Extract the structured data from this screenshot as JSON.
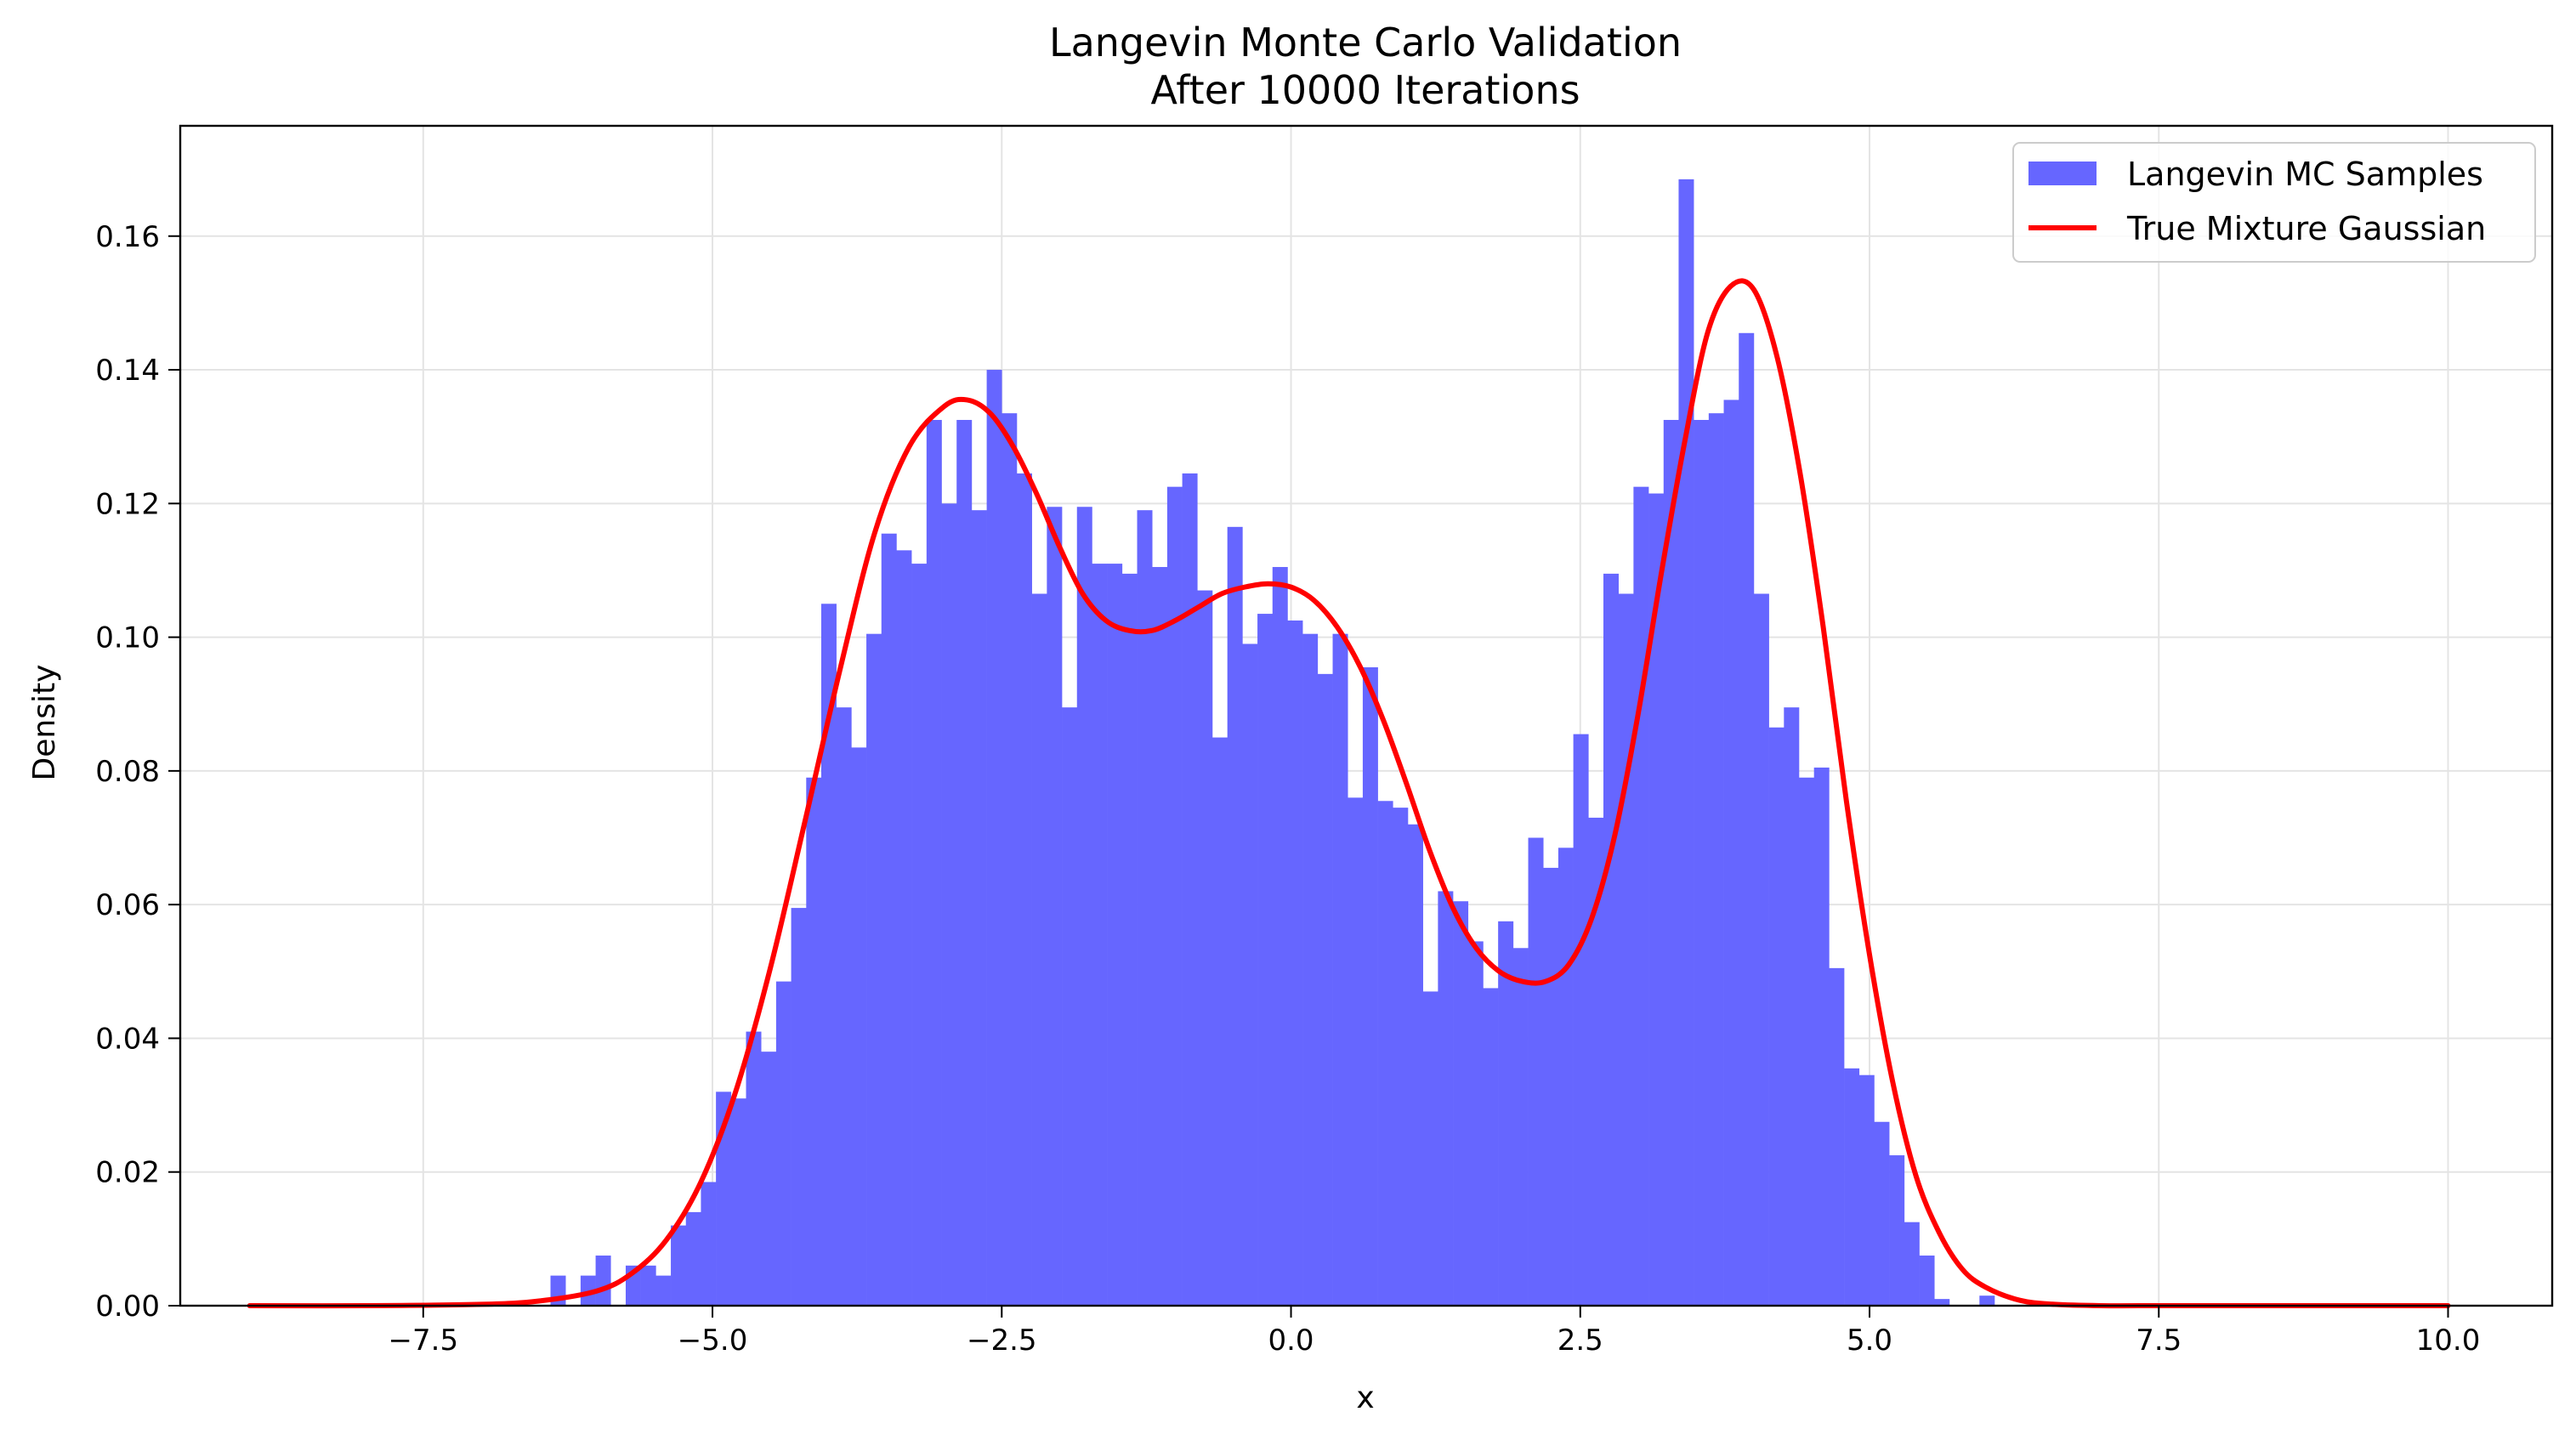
{
  "chart_data": {
    "type": "bar",
    "title": "Langevin Monte Carlo Validation",
    "subtitle": "After 10000 Iterations",
    "xlabel": "x",
    "ylabel": "Density",
    "xlim": [
      -9.6,
      10.9
    ],
    "ylim": [
      0,
      0.1765
    ],
    "x_ticks": [
      -7.5,
      -5.0,
      -2.5,
      0.0,
      2.5,
      5.0,
      7.5,
      10.0
    ],
    "x_tick_labels": [
      "−7.5",
      "−5.0",
      "−2.5",
      "0.0",
      "2.5",
      "5.0",
      "7.5",
      "10.0"
    ],
    "y_ticks": [
      0.0,
      0.02,
      0.04,
      0.06,
      0.08,
      0.1,
      0.12,
      0.14,
      0.16
    ],
    "y_tick_labels": [
      "0.00",
      "0.02",
      "0.04",
      "0.06",
      "0.08",
      "0.10",
      "0.12",
      "0.14",
      "0.16"
    ],
    "grid": true,
    "legend_position": "top-right",
    "colors": {
      "histogram": "#6666ff",
      "curve": "#ff0000",
      "grid": "#e4e4e4",
      "axes": "#000000"
    },
    "series": [
      {
        "name": "Langevin MC Samples",
        "kind": "histogram",
        "bin_start": -6.4,
        "bin_width": 0.13,
        "values": [
          0.0045,
          0,
          0.0045,
          0.0075,
          0,
          0.006,
          0.006,
          0.0045,
          0.012,
          0.014,
          0.0185,
          0.032,
          0.031,
          0.041,
          0.038,
          0.0485,
          0.0595,
          0.079,
          0.105,
          0.0895,
          0.0835,
          0.1005,
          0.1155,
          0.113,
          0.111,
          0.1325,
          0.12,
          0.1325,
          0.119,
          0.14,
          0.1335,
          0.1245,
          0.1065,
          0.1195,
          0.0895,
          0.1195,
          0.111,
          0.111,
          0.1095,
          0.119,
          0.1105,
          0.1225,
          0.1245,
          0.107,
          0.085,
          0.1165,
          0.099,
          0.1035,
          0.1105,
          0.1025,
          0.1005,
          0.0945,
          0.1005,
          0.076,
          0.0955,
          0.0755,
          0.0745,
          0.072,
          0.047,
          0.062,
          0.0605,
          0.0545,
          0.0475,
          0.0575,
          0.0535,
          0.07,
          0.0655,
          0.0685,
          0.0855,
          0.073,
          0.1095,
          0.1065,
          0.1225,
          0.1215,
          0.1325,
          0.1685,
          0.1325,
          0.1335,
          0.1355,
          0.1455,
          0.1065,
          0.0865,
          0.0895,
          0.079,
          0.0805,
          0.0505,
          0.0355,
          0.0345,
          0.0275,
          0.0225,
          0.0125,
          0.0075,
          0.001,
          0,
          0,
          0.0015
        ]
      },
      {
        "name": "True Mixture Gaussian",
        "kind": "line",
        "x": [
          -9.0,
          -8.0,
          -7.0,
          -6.5,
          -6.0,
          -5.7,
          -5.4,
          -5.1,
          -4.8,
          -4.5,
          -4.2,
          -3.9,
          -3.6,
          -3.3,
          -3.0,
          -2.8,
          -2.6,
          -2.4,
          -2.2,
          -2.0,
          -1.8,
          -1.6,
          -1.4,
          -1.2,
          -1.0,
          -0.8,
          -0.6,
          -0.4,
          -0.2,
          0.0,
          0.2,
          0.4,
          0.6,
          0.8,
          1.0,
          1.2,
          1.4,
          1.6,
          1.8,
          2.0,
          2.2,
          2.4,
          2.6,
          2.8,
          3.0,
          3.2,
          3.4,
          3.6,
          3.8,
          4.0,
          4.2,
          4.4,
          4.6,
          4.8,
          5.0,
          5.2,
          5.4,
          5.6,
          5.8,
          6.0,
          6.3,
          6.6,
          7.0,
          7.5,
          8.0,
          9.0,
          10.0
        ],
        "y": [
          0.0,
          0.0,
          0.0002,
          0.0007,
          0.0022,
          0.0048,
          0.0098,
          0.0185,
          0.032,
          0.0505,
          0.0725,
          0.095,
          0.1155,
          0.1285,
          0.1345,
          0.1355,
          0.1335,
          0.1285,
          0.1215,
          0.1135,
          0.1065,
          0.1025,
          0.101,
          0.101,
          0.1025,
          0.1045,
          0.1065,
          0.1075,
          0.108,
          0.1075,
          0.1055,
          0.1015,
          0.0955,
          0.0875,
          0.078,
          0.068,
          0.0595,
          0.0535,
          0.05,
          0.0485,
          0.0485,
          0.051,
          0.058,
          0.0705,
          0.0885,
          0.1095,
          0.129,
          0.1455,
          0.1525,
          0.152,
          0.142,
          0.1245,
          0.1015,
          0.0755,
          0.0525,
          0.0335,
          0.0195,
          0.011,
          0.0055,
          0.0028,
          0.0008,
          0.0002,
          0.0,
          0.0,
          0.0,
          0.0,
          0.0
        ]
      }
    ]
  }
}
